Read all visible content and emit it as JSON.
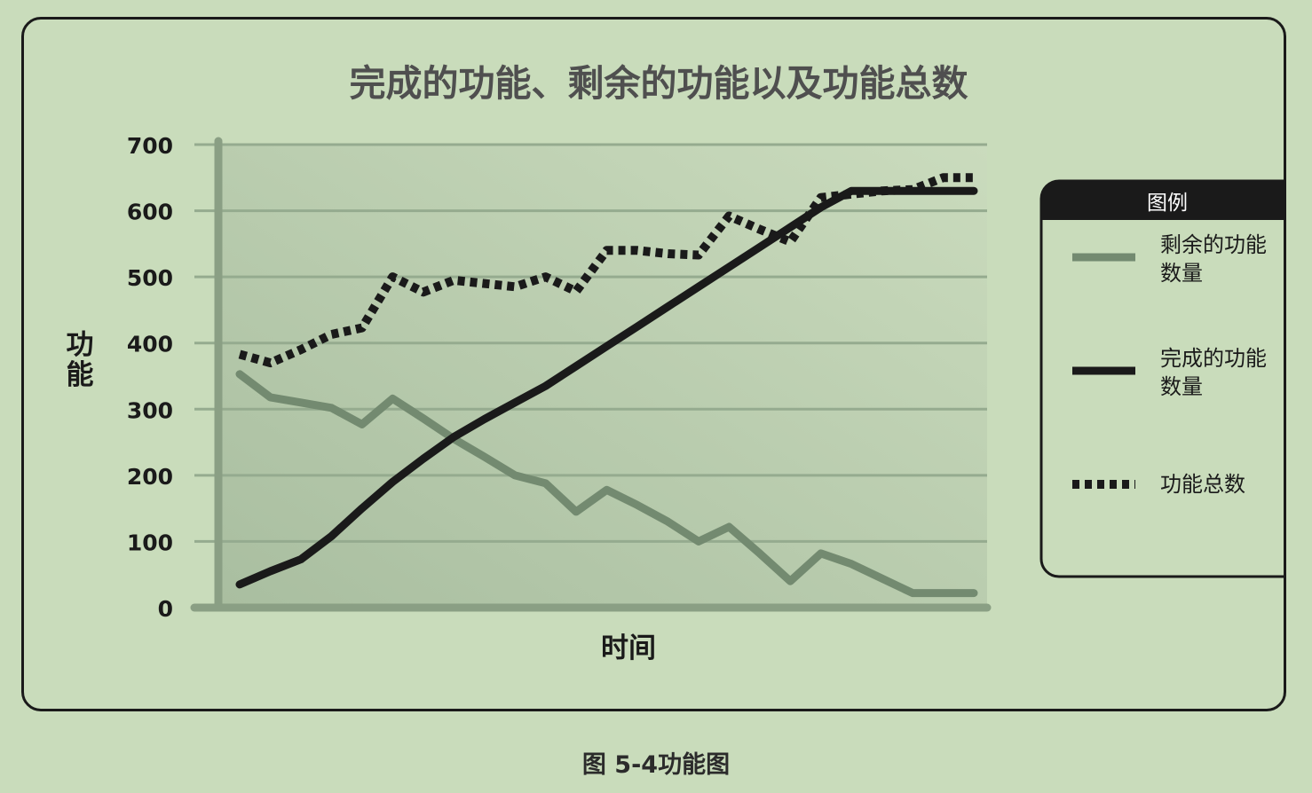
{
  "chart_data": {
    "type": "line",
    "title": "完成的功能、剩余的功能以及功能总数",
    "xlabel": "时间",
    "ylabel": "功能",
    "ylim": [
      0,
      700
    ],
    "yticks": [
      0,
      100,
      200,
      300,
      400,
      500,
      600,
      700
    ],
    "grid": true,
    "legend_position": "right",
    "legend_title": "图例",
    "x": [
      1,
      2,
      3,
      4,
      5,
      6,
      7,
      8,
      9,
      10,
      11,
      12,
      13,
      14,
      15,
      16,
      17,
      18,
      19,
      20,
      21,
      22,
      23,
      24,
      25
    ],
    "series": [
      {
        "name": "剩余的功能数量",
        "style": "solid",
        "color": "#738a70",
        "values": [
          353,
          318,
          310,
          302,
          277,
          316,
          286,
          255,
          228,
          200,
          188,
          145,
          178,
          155,
          130,
          100,
          122,
          82,
          40,
          82,
          66,
          44,
          22,
          22,
          22
        ]
      },
      {
        "name": "完成的功能数量",
        "style": "solid",
        "color": "#1a1a1a",
        "values": [
          35,
          55,
          73,
          108,
          150,
          190,
          225,
          258,
          285,
          310,
          335,
          365,
          395,
          425,
          455,
          485,
          515,
          545,
          575,
          605,
          630,
          630,
          630,
          630,
          630
        ]
      },
      {
        "name": "功能总数",
        "style": "dotted",
        "color": "#1a1a1a",
        "values": [
          383,
          370,
          390,
          413,
          423,
          500,
          477,
          495,
          490,
          485,
          500,
          478,
          540,
          540,
          535,
          533,
          592,
          572,
          553,
          620,
          625,
          630,
          632,
          650,
          650
        ]
      }
    ]
  },
  "caption": "图 5-4功能图"
}
